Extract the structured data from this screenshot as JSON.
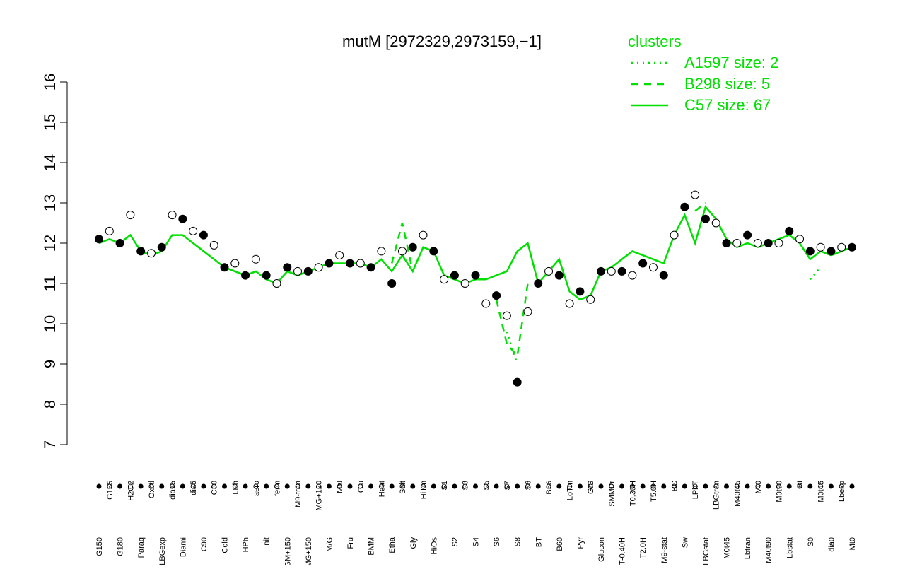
{
  "chart_data": {
    "type": "line",
    "title": "mutM [2972329,2973159,−1]",
    "legend_title": "clusters",
    "legend_position": "top-right",
    "categories": [
      "G150",
      "G135",
      "G180",
      "H2O2",
      "Paraq",
      "Oxctl",
      "LBGexp",
      "dia15",
      "Diami",
      "dia5",
      "C90",
      "C30",
      "Cold",
      "LPh",
      "HPh",
      "aero",
      "nit",
      "ferm",
      "GM+150",
      "M9-tran",
      "MG+150",
      "MG+120",
      "M/G",
      "Mal",
      "Fru",
      "Glu",
      "BMM",
      "Heat",
      "Etha",
      "Salt",
      "Gly",
      "HiTm",
      "HiOs",
      "S1",
      "S2",
      "S3",
      "S4",
      "S5",
      "S6",
      "S7",
      "S8",
      "S6",
      "BT",
      "B36",
      "B60",
      "LoTm",
      "Pyr",
      "G/S",
      "Glucon",
      "SMMPr",
      "T-0.40H",
      "T0.30H",
      "T2.0H",
      "T5.0H",
      "M9-stat",
      "BC",
      "Sw",
      "LPhT",
      "LBGstat",
      "LBGtran",
      "M0t45",
      "M40t45",
      "Lbtran",
      "Mt0",
      "M40t90",
      "M0t90",
      "Lbstat",
      "BI",
      "S0",
      "M0t45",
      "dia0",
      "Lbexp",
      "Mt0"
    ],
    "values": [
      12.1,
      12.3,
      12.0,
      12.7,
      11.8,
      11.75,
      11.9,
      12.7,
      12.6,
      12.3,
      12.2,
      11.95,
      11.4,
      11.5,
      11.2,
      11.6,
      11.2,
      11.0,
      11.4,
      11.3,
      11.3,
      11.4,
      11.5,
      11.7,
      11.5,
      11.5,
      11.4,
      11.8,
      11.0,
      11.8,
      11.9,
      12.2,
      11.8,
      11.1,
      11.2,
      11.0,
      11.2,
      10.5,
      10.7,
      10.2,
      8.55,
      10.3,
      11.0,
      11.3,
      11.2,
      10.5,
      10.8,
      10.6,
      11.3,
      11.3,
      11.3,
      11.2,
      11.5,
      11.4,
      11.2,
      12.2,
      12.9,
      13.2,
      12.6,
      12.5,
      12.0,
      12.0,
      12.2,
      12.0,
      12.0,
      12.0,
      12.3,
      12.1,
      11.8,
      11.9,
      11.8,
      11.9,
      11.9
    ],
    "series": [
      {
        "name": "A1597 size: 2",
        "color": "#00e000",
        "style": "dotted",
        "values": [
          null,
          null,
          null,
          null,
          null,
          null,
          null,
          null,
          null,
          null,
          null,
          null,
          null,
          null,
          null,
          null,
          null,
          null,
          null,
          null,
          null,
          null,
          null,
          null,
          null,
          null,
          null,
          null,
          null,
          null,
          null,
          null,
          null,
          null,
          null,
          null,
          null,
          null,
          null,
          9.8,
          9.0,
          null,
          null,
          null,
          null,
          null,
          null,
          null,
          null,
          null,
          null,
          null,
          null,
          null,
          null,
          null,
          null,
          null,
          null,
          null,
          null,
          null,
          null,
          null,
          null,
          null,
          null,
          null,
          11.1,
          11.4,
          null,
          null,
          null
        ]
      },
      {
        "name": "B298 size: 5",
        "color": "#00e000",
        "style": "dashed",
        "values": [
          null,
          null,
          null,
          null,
          null,
          null,
          null,
          null,
          null,
          null,
          null,
          null,
          null,
          null,
          null,
          null,
          null,
          null,
          null,
          null,
          null,
          null,
          null,
          null,
          null,
          null,
          null,
          null,
          11.5,
          12.5,
          11.3,
          null,
          null,
          null,
          null,
          null,
          null,
          null,
          10.6,
          9.5,
          9.2,
          11.0,
          null,
          null,
          null,
          null,
          null,
          null,
          null,
          null,
          null,
          null,
          null,
          null,
          null,
          null,
          null,
          12.8,
          13.0,
          null,
          null,
          null,
          null,
          null,
          null,
          null,
          null,
          null,
          null,
          null,
          null,
          null,
          null
        ]
      },
      {
        "name": "C57 size: 67",
        "color": "#00e000",
        "style": "solid",
        "values": [
          12.0,
          12.1,
          12.0,
          12.2,
          11.8,
          11.7,
          11.8,
          12.2,
          12.2,
          12.0,
          11.8,
          11.6,
          11.4,
          11.3,
          11.2,
          11.3,
          11.1,
          11.0,
          11.3,
          11.2,
          11.3,
          11.4,
          11.5,
          11.5,
          11.5,
          11.5,
          11.4,
          11.6,
          11.3,
          11.7,
          11.3,
          11.9,
          11.8,
          11.2,
          11.1,
          11.0,
          11.1,
          11.1,
          11.2,
          11.3,
          11.8,
          12.0,
          11.0,
          11.3,
          11.6,
          10.8,
          10.6,
          10.7,
          11.3,
          11.4,
          11.6,
          11.8,
          11.7,
          11.6,
          11.5,
          12.2,
          12.7,
          12.0,
          12.9,
          12.6,
          12.1,
          11.9,
          12.0,
          11.9,
          12.0,
          12.1,
          12.2,
          12.0,
          11.6,
          11.8,
          11.7,
          11.8,
          11.9
        ]
      }
    ],
    "ylim": [
      7,
      16
    ],
    "yticks": [
      7,
      8,
      9,
      10,
      11,
      12,
      13,
      14,
      15,
      16
    ]
  }
}
